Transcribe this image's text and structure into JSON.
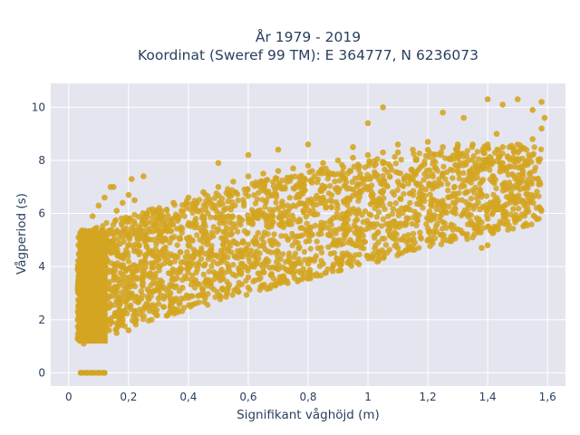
{
  "chart_data": {
    "type": "scatter",
    "title_line1": "År 1979 - 2019",
    "title_line2": "Koordinat (Sweref 99 TM): E 364777, N 6236073",
    "xlabel": "Signifikant våghöjd (m)",
    "ylabel": "Vågperiod (s)",
    "xlim": [
      -0.06,
      1.66
    ],
    "ylim": [
      -0.5,
      10.9
    ],
    "xticks": [
      0,
      0.2,
      0.4,
      0.6,
      0.8,
      1,
      1.2,
      1.4,
      1.6
    ],
    "xtick_labels": [
      "0",
      "0,2",
      "0,4",
      "0,6",
      "0,8",
      "1",
      "1,2",
      "1,4",
      "1,6"
    ],
    "yticks": [
      0,
      2,
      4,
      6,
      8,
      10
    ],
    "ytick_labels": [
      "0",
      "2",
      "4",
      "6",
      "8",
      "10"
    ],
    "grid": true,
    "legend": false,
    "marker_color": "#D4A520",
    "background_color": "#E5E5F0",
    "series": [
      {
        "points": [
          [
            0.04,
            0.0
          ],
          [
            0.06,
            0.0
          ],
          [
            0.08,
            0.0
          ],
          [
            0.1,
            0.0
          ],
          [
            0.12,
            0.0
          ],
          [
            0.03,
            1.3
          ],
          [
            0.05,
            1.1
          ],
          [
            0.08,
            1.2
          ],
          [
            0.12,
            1.3
          ],
          [
            0.16,
            1.5
          ],
          [
            0.2,
            1.6
          ],
          [
            0.03,
            2.0
          ],
          [
            0.05,
            2.6
          ],
          [
            0.07,
            3.0
          ],
          [
            0.09,
            3.5
          ],
          [
            0.11,
            4.0
          ],
          [
            0.13,
            4.6
          ],
          [
            0.15,
            5.0
          ],
          [
            0.04,
            3.4
          ],
          [
            0.05,
            4.5
          ],
          [
            0.06,
            5.3
          ],
          [
            0.08,
            5.9
          ],
          [
            0.1,
            6.3
          ],
          [
            0.12,
            6.6
          ],
          [
            0.14,
            7.0
          ],
          [
            0.16,
            6.1
          ],
          [
            0.18,
            6.4
          ],
          [
            0.2,
            6.7
          ],
          [
            0.22,
            6.5
          ],
          [
            0.18,
            2.0
          ],
          [
            0.22,
            2.3
          ],
          [
            0.26,
            2.6
          ],
          [
            0.3,
            2.8
          ],
          [
            0.34,
            3.0
          ],
          [
            0.38,
            3.2
          ],
          [
            0.42,
            3.4
          ],
          [
            0.46,
            3.5
          ],
          [
            0.5,
            3.6
          ],
          [
            0.55,
            3.7
          ],
          [
            0.6,
            3.6
          ],
          [
            0.65,
            3.8
          ],
          [
            0.7,
            3.9
          ],
          [
            0.75,
            4.0
          ],
          [
            0.8,
            4.1
          ],
          [
            0.85,
            4.1
          ],
          [
            0.9,
            4.2
          ],
          [
            0.95,
            4.3
          ],
          [
            1.0,
            4.4
          ],
          [
            1.05,
            4.5
          ],
          [
            1.1,
            4.7
          ],
          [
            1.15,
            4.8
          ],
          [
            1.2,
            5.0
          ],
          [
            1.25,
            5.2
          ],
          [
            1.3,
            5.4
          ],
          [
            1.35,
            5.6
          ],
          [
            1.4,
            5.8
          ],
          [
            1.45,
            6.2
          ],
          [
            1.5,
            6.6
          ],
          [
            0.2,
            3.0
          ],
          [
            0.25,
            3.6
          ],
          [
            0.3,
            4.0
          ],
          [
            0.35,
            4.4
          ],
          [
            0.4,
            4.8
          ],
          [
            0.45,
            5.1
          ],
          [
            0.5,
            5.4
          ],
          [
            0.55,
            5.6
          ],
          [
            0.6,
            5.8
          ],
          [
            0.65,
            6.0
          ],
          [
            0.7,
            6.2
          ],
          [
            0.75,
            6.3
          ],
          [
            0.8,
            6.5
          ],
          [
            0.85,
            6.6
          ],
          [
            0.9,
            6.8
          ],
          [
            0.95,
            6.9
          ],
          [
            1.0,
            7.0
          ],
          [
            1.05,
            7.1
          ],
          [
            1.1,
            7.2
          ],
          [
            1.15,
            7.3
          ],
          [
            1.2,
            7.4
          ],
          [
            1.25,
            7.5
          ],
          [
            1.3,
            7.6
          ],
          [
            1.35,
            7.7
          ],
          [
            1.4,
            7.8
          ],
          [
            1.45,
            7.9
          ],
          [
            1.5,
            8.0
          ],
          [
            1.55,
            8.2
          ],
          [
            0.25,
            5.8
          ],
          [
            0.3,
            6.1
          ],
          [
            0.35,
            6.4
          ],
          [
            0.4,
            6.6
          ],
          [
            0.45,
            6.8
          ],
          [
            0.5,
            7.0
          ],
          [
            0.55,
            7.2
          ],
          [
            0.6,
            7.4
          ],
          [
            0.65,
            7.5
          ],
          [
            0.7,
            7.6
          ],
          [
            0.75,
            7.7
          ],
          [
            0.8,
            7.8
          ],
          [
            0.85,
            7.9
          ],
          [
            0.9,
            8.0
          ],
          [
            0.95,
            8.1
          ],
          [
            1.0,
            8.2
          ],
          [
            1.05,
            8.3
          ],
          [
            1.1,
            8.3
          ],
          [
            1.15,
            8.4
          ],
          [
            1.2,
            8.4
          ],
          [
            1.25,
            8.5
          ],
          [
            1.3,
            8.5
          ],
          [
            1.35,
            8.6
          ],
          [
            1.4,
            8.6
          ],
          [
            1.45,
            8.5
          ],
          [
            1.5,
            8.6
          ],
          [
            1.55,
            8.8
          ],
          [
            1.58,
            9.2
          ],
          [
            0.8,
            8.6
          ],
          [
            0.95,
            8.5
          ],
          [
            1.1,
            8.6
          ],
          [
            1.2,
            8.7
          ],
          [
            1.3,
            8.6
          ],
          [
            1.4,
            8.5
          ],
          [
            0.6,
            8.2
          ],
          [
            0.7,
            8.4
          ],
          [
            0.5,
            7.9
          ],
          [
            1.0,
            9.4
          ],
          [
            1.05,
            10.0
          ],
          [
            1.25,
            9.8
          ],
          [
            1.32,
            9.6
          ],
          [
            1.4,
            10.3
          ],
          [
            1.45,
            10.1
          ],
          [
            1.5,
            10.3
          ],
          [
            1.55,
            9.9
          ],
          [
            1.58,
            10.2
          ],
          [
            1.59,
            9.6
          ],
          [
            1.43,
            9.0
          ],
          [
            0.21,
            7.3
          ],
          [
            0.25,
            7.4
          ],
          [
            0.15,
            7.0
          ],
          [
            1.38,
            4.7
          ],
          [
            1.4,
            4.8
          ],
          [
            1.32,
            6.0
          ],
          [
            1.1,
            5.6
          ],
          [
            1.22,
            6.5
          ]
        ]
      }
    ]
  }
}
